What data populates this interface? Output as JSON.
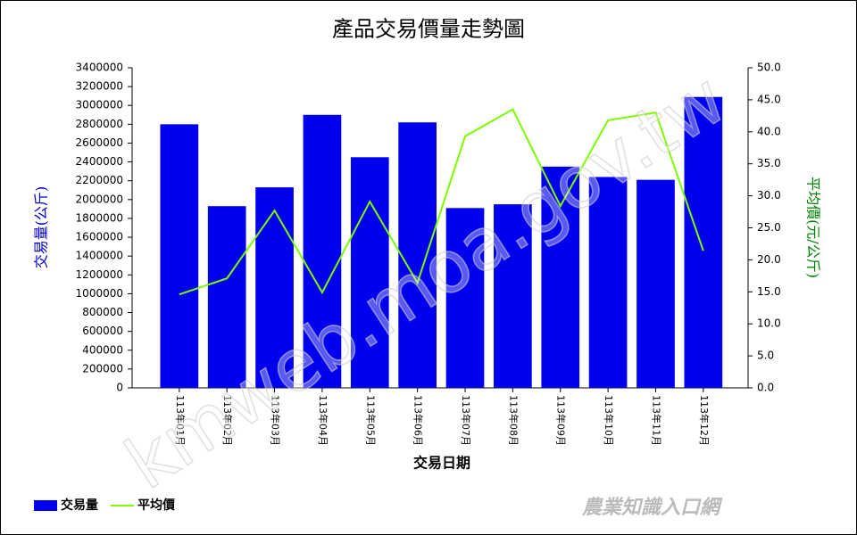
{
  "chart_data": {
    "type": "bar",
    "title": "產品交易價量走勢圖",
    "x_label": "交易日期",
    "y_label": "交易量(公斤)",
    "y2_label": "平均價(元/公斤)",
    "categories": [
      "113年01月",
      "113年02月",
      "113年03月",
      "113年04月",
      "113年05月",
      "113年06月",
      "113年07月",
      "113年08月",
      "113年09月",
      "113年10月",
      "113年11月",
      "113年12月"
    ],
    "series": [
      {
        "name": "交易量",
        "type": "bar",
        "color": "#0000ee",
        "values": [
          2800000,
          1930000,
          2130000,
          2900000,
          2450000,
          2820000,
          1910000,
          1950000,
          2350000,
          2240000,
          2210000,
          3090000
        ]
      },
      {
        "name": "平均價",
        "type": "line",
        "axis": "y2",
        "color": "#7cfc00",
        "values": [
          14.6,
          17.1,
          27.7,
          14.9,
          29.1,
          16.4,
          39.3,
          43.5,
          28.4,
          41.8,
          43.0,
          21.4
        ]
      }
    ],
    "ylim": [
      0,
      3400000
    ],
    "yticks": [
      0,
      200000,
      400000,
      600000,
      800000,
      1000000,
      1200000,
      1400000,
      1600000,
      1800000,
      2000000,
      2200000,
      2400000,
      2600000,
      2800000,
      3000000,
      3200000,
      3400000
    ],
    "y2lim": [
      0,
      50
    ],
    "y2ticks": [
      {
        "value": 0,
        "label": "0.0"
      },
      {
        "value": 5,
        "label": "5.0"
      },
      {
        "value": 10,
        "label": "10.0"
      },
      {
        "value": 15,
        "label": "15.0"
      },
      {
        "value": 20,
        "label": "20.0"
      },
      {
        "value": 25,
        "label": "25.0"
      },
      {
        "value": 30,
        "label": "30.0"
      },
      {
        "value": 35,
        "label": "35.0"
      },
      {
        "value": 40,
        "label": "40.0"
      },
      {
        "value": 45,
        "label": "45.0"
      },
      {
        "value": 50,
        "label": "50.0"
      }
    ],
    "legend": "bottom-left",
    "watermark": "kmweb.moa.gov.tw",
    "logo_text": "農業知識入口網"
  }
}
